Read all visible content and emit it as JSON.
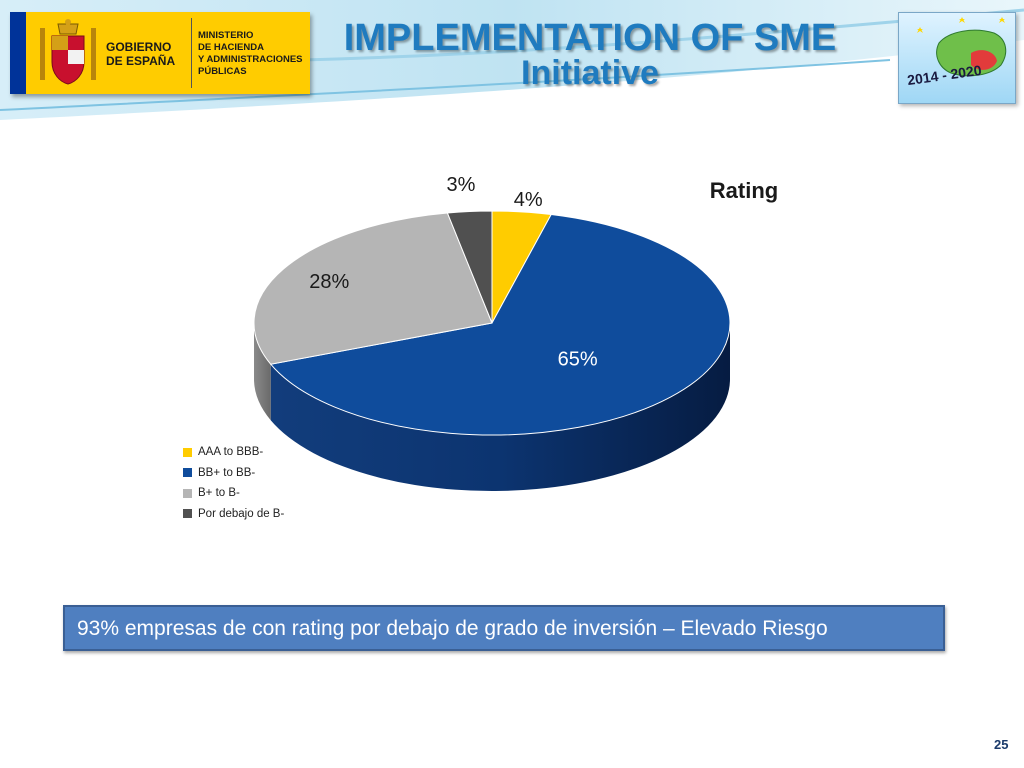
{
  "header": {
    "gobierno": [
      "GOBIERNO",
      "DE ESPAÑA"
    ],
    "ministerio": [
      "MINISTERIO",
      "DE HACIENDA",
      "Y ADMINISTRACIONES",
      "PÚBLICAS"
    ],
    "title_line1": "IMPLEMENTATION OF SME",
    "title_line2": "Initiative",
    "badge_text": "2014 - 2020"
  },
  "chart_data": {
    "type": "pie",
    "title": "Rating",
    "categories": [
      "AAA to BBB-",
      "BB+ to BB-",
      "B+ to B-",
      "Por debajo de B-"
    ],
    "values": [
      4,
      65,
      28,
      3
    ],
    "labels": [
      "4%",
      "65%",
      "28%",
      "3%"
    ],
    "colors": [
      "#ffcc00",
      "#0f4c9c",
      "#b5b5b5",
      "#505050"
    ],
    "legend_position": "bottom-left"
  },
  "footer": {
    "note": "93% empresas de con rating por debajo de grado de inversión – Elevado Riesgo"
  },
  "page_number": "25"
}
